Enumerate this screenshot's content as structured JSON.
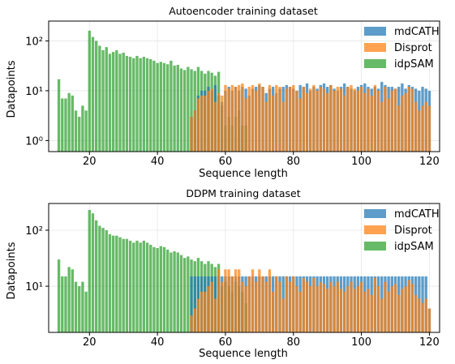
{
  "chart_data": [
    {
      "type": "bar",
      "title": "Autoencoder training dataset",
      "xlabel": "Sequence length",
      "ylabel": "Datapoints",
      "yscale": "log",
      "ylim": [
        0.6,
        250
      ],
      "xlim": [
        8,
        123
      ],
      "xticks": [
        20,
        40,
        60,
        80,
        100,
        120
      ],
      "yticks": [
        {
          "v": 1,
          "label": "10⁰"
        },
        {
          "v": 10,
          "label": "10¹"
        },
        {
          "v": 100,
          "label": "10²"
        }
      ],
      "grid": true,
      "legend_position": "top-right",
      "series": [
        {
          "name": "mdCATH",
          "color": "#1f77b4",
          "x_start": 50,
          "values": [
            3,
            4,
            8,
            10,
            10,
            12,
            10,
            13,
            8,
            6,
            10,
            12,
            10,
            12,
            10,
            12,
            11,
            8,
            11,
            12,
            13,
            12,
            9,
            11,
            12,
            9,
            11,
            12,
            13,
            12,
            11,
            10,
            13,
            12,
            14,
            10,
            12,
            11,
            13,
            14,
            12,
            13,
            11,
            10,
            12,
            14,
            12,
            11,
            10,
            12,
            13,
            14,
            12,
            11,
            12,
            11,
            15,
            13,
            12,
            12,
            11,
            12,
            14,
            11,
            13,
            12,
            11,
            10,
            12,
            11,
            10
          ]
        },
        {
          "name": "Disprot",
          "color": "#ff7f0e",
          "x_start": 50,
          "values": [
            3,
            4,
            7,
            8,
            8,
            10,
            11,
            6,
            9,
            8,
            13,
            11,
            13,
            12,
            13,
            14,
            7,
            12,
            13,
            10,
            14,
            12,
            6,
            13,
            8,
            13,
            12,
            6,
            11,
            12,
            13,
            10,
            7,
            12,
            9,
            11,
            13,
            10,
            12,
            11,
            9,
            13,
            10,
            12,
            11,
            8,
            12,
            13,
            11,
            10,
            12,
            9,
            11,
            8,
            13,
            10,
            6,
            12,
            7,
            10,
            11,
            5,
            8,
            9,
            12,
            11,
            6,
            4,
            5,
            6,
            5
          ]
        },
        {
          "name": "idpSAM",
          "color": "#2ca02c",
          "x_start": 11,
          "values": [
            17,
            7,
            7,
            9,
            8,
            4,
            3,
            5,
            4,
            160,
            120,
            100,
            80,
            65,
            75,
            55,
            60,
            65,
            55,
            58,
            50,
            48,
            45,
            50,
            45,
            48,
            45,
            43,
            40,
            36,
            38,
            36,
            34,
            40,
            32,
            33,
            28,
            26,
            30,
            27,
            25,
            30,
            25,
            22,
            25,
            23,
            20,
            24,
            5,
            2,
            3,
            2,
            3,
            4,
            2,
            2
          ]
        }
      ]
    },
    {
      "type": "bar",
      "title": "DDPM training dataset",
      "xlabel": "Sequence length",
      "ylabel": "Datapoints",
      "yscale": "log",
      "ylim": [
        1.5,
        300
      ],
      "xlim": [
        8,
        123
      ],
      "xticks": [
        20,
        40,
        60,
        80,
        100,
        120
      ],
      "yticks": [
        {
          "v": 10,
          "label": "10¹"
        },
        {
          "v": 100,
          "label": "10²"
        }
      ],
      "grid": true,
      "legend_position": "top-right",
      "series": [
        {
          "name": "mdCATH",
          "color": "#1f77b4",
          "x_start": 50,
          "values": [
            15,
            15,
            15,
            15,
            15,
            15,
            15,
            15,
            15,
            15,
            15,
            15,
            15,
            15,
            15,
            15,
            15,
            15,
            15,
            15,
            15,
            15,
            15,
            15,
            15,
            15,
            15,
            15,
            15,
            15,
            15,
            15,
            15,
            15,
            15,
            15,
            15,
            15,
            15,
            15,
            15,
            15,
            15,
            15,
            15,
            15,
            15,
            15,
            15,
            15,
            15,
            15,
            15,
            15,
            15,
            15,
            15,
            15,
            15,
            15,
            15,
            15,
            15,
            15,
            15,
            15,
            15,
            15,
            15,
            15,
            4
          ]
        },
        {
          "name": "Disprot",
          "color": "#ff7f0e",
          "x_start": 50,
          "values": [
            3,
            4,
            6,
            8,
            8,
            10,
            12,
            6,
            20,
            12,
            20,
            20,
            15,
            20,
            20,
            12,
            10,
            15,
            20,
            12,
            20,
            15,
            12,
            20,
            8,
            15,
            12,
            6,
            15,
            12,
            15,
            10,
            8,
            14,
            12,
            10,
            14,
            10,
            12,
            11,
            9,
            12,
            10,
            12,
            9,
            8,
            10,
            12,
            9,
            10,
            12,
            8,
            9,
            7,
            14,
            10,
            6,
            12,
            8,
            10,
            11,
            7,
            9,
            10,
            13,
            11,
            7,
            6,
            5,
            6,
            4
          ]
        },
        {
          "name": "idpSAM",
          "color": "#2ca02c",
          "x_start": 11,
          "values": [
            30,
            15,
            15,
            22,
            20,
            12,
            10,
            12,
            8,
            230,
            200,
            150,
            120,
            110,
            100,
            85,
            80,
            80,
            75,
            70,
            70,
            65,
            60,
            65,
            60,
            65,
            60,
            55,
            50,
            48,
            52,
            50,
            45,
            40,
            42,
            40,
            36,
            32,
            34,
            30,
            28,
            32,
            28,
            25,
            28,
            25,
            22,
            25,
            10,
            12,
            10,
            8,
            12,
            10,
            8,
            5
          ]
        }
      ]
    }
  ]
}
